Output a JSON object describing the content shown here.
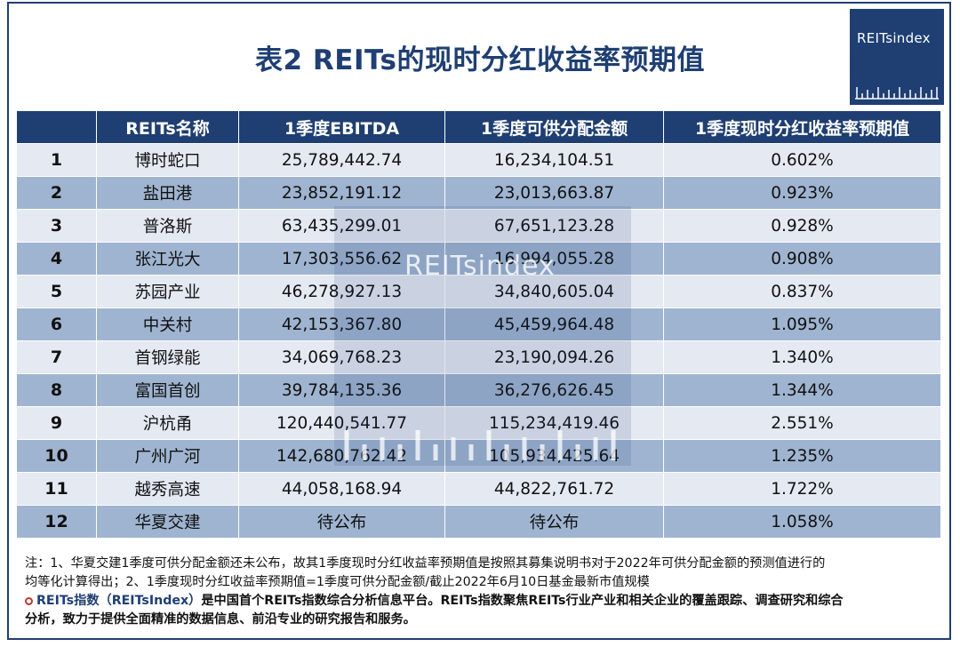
{
  "title": "表2 REITs的现时分红收益率预期值",
  "logo": {
    "text": "REITsindex"
  },
  "watermark": {
    "text": "REITsindex"
  },
  "colors": {
    "primary": "#1f3f73",
    "row_light": "#e4e9f2",
    "row_dark": "#9fb4d0",
    "bullet": "#c0392b"
  },
  "table": {
    "headers": [
      "",
      "REITs名称",
      "1季度EBITDA",
      "1季度可供分配金额",
      "1季度现时分红收益率预期值"
    ],
    "rows": [
      [
        "1",
        "博时蛇口",
        "25,789,442.74",
        "16,234,104.51",
        "0.602%"
      ],
      [
        "2",
        "盐田港",
        "23,852,191.12",
        "23,013,663.87",
        "0.923%"
      ],
      [
        "3",
        "普洛斯",
        "63,435,299.01",
        "67,651,123.28",
        "0.928%"
      ],
      [
        "4",
        "张江光大",
        "17,303,556.62",
        "16,994,055.28",
        "0.908%"
      ],
      [
        "5",
        "苏园产业",
        "46,278,927.13",
        "34,840,605.04",
        "0.837%"
      ],
      [
        "6",
        "中关村",
        "42,153,367.80",
        "45,459,964.48",
        "1.095%"
      ],
      [
        "7",
        "首钢绿能",
        "34,069,768.23",
        "23,190,094.26",
        "1.340%"
      ],
      [
        "8",
        "富国首创",
        "39,784,135.36",
        "36,276,626.45",
        "1.344%"
      ],
      [
        "9",
        "沪杭甬",
        "120,440,541.77",
        "115,234,419.46",
        "2.551%"
      ],
      [
        "10",
        "广州广河",
        "142,680,762.42",
        "105,934,425.64",
        "1.235%"
      ],
      [
        "11",
        "越秀高速",
        "44,058,168.94",
        "44,822,761.72",
        "1.722%"
      ],
      [
        "12",
        "华夏交建",
        "待公布",
        "待公布",
        "1.058%"
      ]
    ]
  },
  "notes": {
    "line1": "注：1、华夏交建1季度可供分配金额还未公布，故其1季度现时分红收益率预期值是按照其募集说明书对于2022年可供分配金额的预测值进行的",
    "line2": "均等化计算得出；2、1季度现时分红收益率预期值=1季度可供分配金额/截止2022年6月10日基金最新市值规模",
    "brand": "REITs指数（REITsIndex）",
    "line3": "是中国首个REITs指数综合分析信息平台。REITs指数聚焦REITs行业产业和相关企业的覆盖跟踪、调查研究和综合",
    "line4": "分析，致力于提供全面精准的数据信息、前沿专业的研究报告和服务。"
  }
}
